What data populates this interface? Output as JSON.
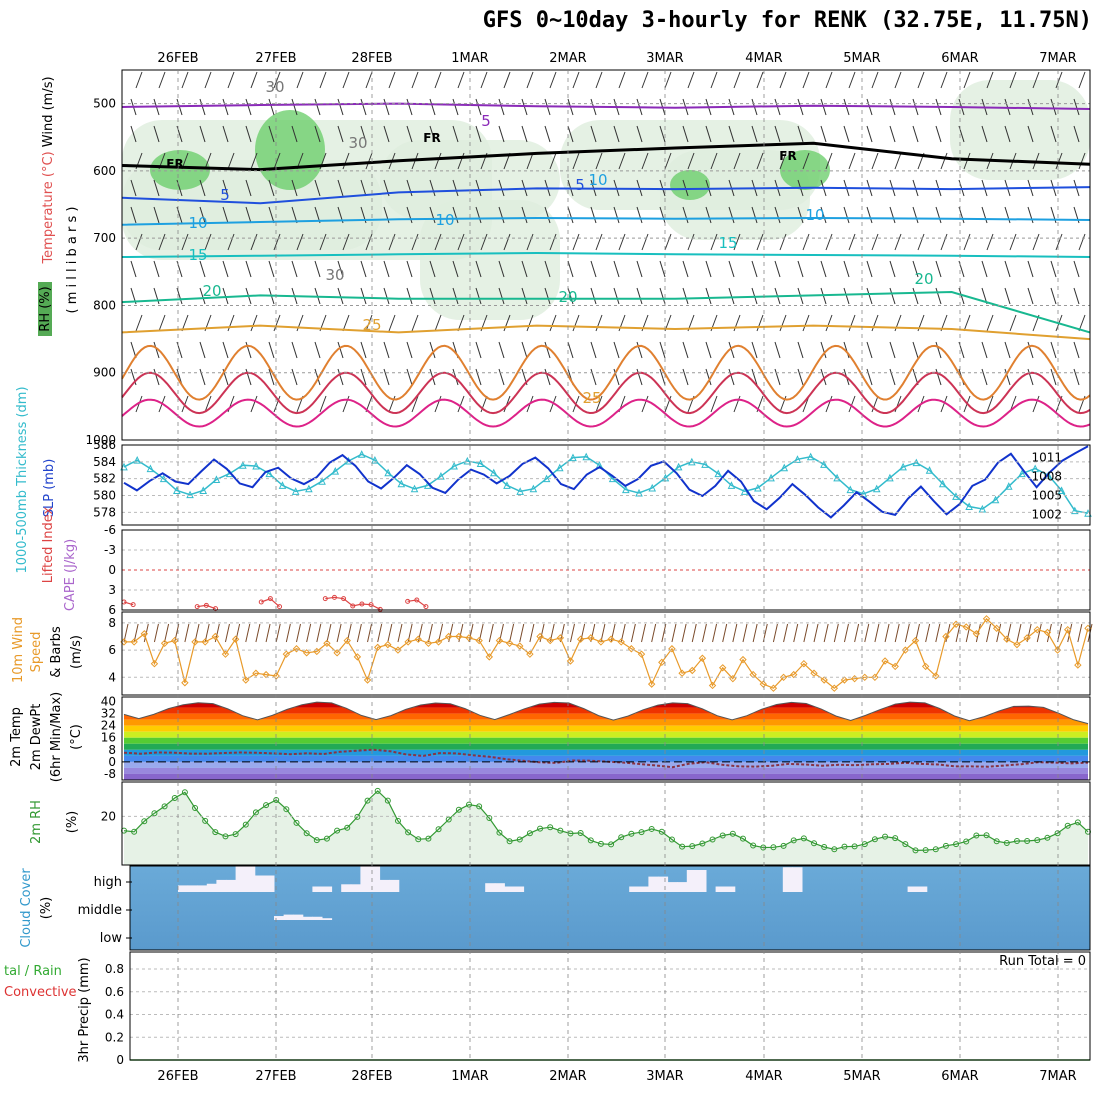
{
  "title": "GFS 0~10day 3-hourly for RENK (32.75E, 11.75N)",
  "dates": [
    "26FEB",
    "27FEB",
    "28FEB",
    "1MAR",
    "2MAR",
    "3MAR",
    "4MAR",
    "5MAR",
    "6MAR",
    "7MAR"
  ],
  "panel_labels": {
    "upper_wind": "Wind (m/s)",
    "upper_temp": "Temperature (°C)",
    "upper_rh": "RH (%)",
    "upper_axis": "( m i l l i b a r s )",
    "thick": "1000-500mb Thickness (dm)",
    "slp": "SLP (mb)",
    "li": "Lifted Index",
    "cape": "CAPE (J/kg)",
    "wind10_a": "10m Wind",
    "wind10_b": "Speed",
    "wind10_c": "& Barbs",
    "wind10_unit": "(m/s)",
    "temp_a": "2m Temp",
    "temp_b": "2m DewPt",
    "temp_c": "(6hr Min/Max)",
    "temp_unit": "(°C)",
    "rh2m": "2m RH",
    "rh2m_unit": "(%)",
    "cloud": "Cloud Cover",
    "cloud_unit": "(%)",
    "precip_a": "tal / Rain",
    "precip_b": "Convective",
    "precip_c": "3hr Precip (mm)",
    "run_total": "Run Total = 0"
  },
  "colors": {
    "thickness": "#33bbcc",
    "slp": "#1133cc",
    "li": "#dd4444",
    "wind10": "#e89a2a",
    "rh2m": "#339933",
    "cloud_bg": "#6aaad8"
  },
  "chart_data": [
    {
      "type": "line",
      "panel": "upper-air cross section",
      "ylabel": "( m i l l i b a r s )",
      "ylim": [
        1000,
        450
      ],
      "yticks": [
        "500",
        "600",
        "700",
        "800",
        "900",
        "1000"
      ],
      "contour_labels": [
        "FR",
        "FR",
        "FR",
        "30",
        "30",
        "30",
        "5",
        "5",
        "5",
        "10",
        "10",
        "10",
        "10",
        "15",
        "15",
        "20",
        "20",
        "20",
        "25",
        "25"
      ],
      "series": [
        {
          "name": "-5",
          "pressure": [
            505,
            502,
            500,
            504,
            506,
            503,
            505,
            508
          ]
        },
        {
          "name": "0",
          "pressure": [
            592,
            598,
            585,
            574,
            566,
            559,
            582,
            590
          ]
        },
        {
          "name": "5",
          "pressure": [
            640,
            648,
            632,
            626,
            627,
            625,
            627,
            624
          ]
        },
        {
          "name": "10",
          "pressure": [
            680,
            676,
            672,
            670,
            671,
            670,
            671,
            673
          ]
        },
        {
          "name": "15",
          "pressure": [
            728,
            726,
            724,
            722,
            724,
            725,
            726,
            728
          ]
        },
        {
          "name": "20",
          "pressure": [
            795,
            785,
            790,
            790,
            790,
            785,
            780,
            840
          ]
        },
        {
          "name": "25",
          "pressure": [
            840,
            830,
            840,
            830,
            835,
            830,
            835,
            850
          ]
        }
      ]
    },
    {
      "type": "line",
      "panel": "thickness-slp",
      "y_left": [
        "578",
        "580",
        "582",
        "584",
        "586"
      ],
      "y_right": [
        "1002",
        "1005",
        "1008",
        "1011"
      ],
      "series": [
        {
          "name": "1000-500mb Thickness (dm)",
          "values": [
            583.4,
            584.2,
            583.2,
            582.0,
            580.6,
            580.1,
            580.6,
            581.9,
            582.6,
            583.6,
            583.5,
            582.6,
            581.2,
            580.5,
            580.8,
            581.7,
            582.9,
            584.1,
            584.9,
            584.2,
            582.7,
            581.4,
            580.8,
            581.2,
            582.3,
            583.5,
            584.1,
            583.8,
            582.7,
            581.2,
            580.5,
            580.8,
            582.0,
            583.3,
            584.5,
            584.6,
            583.6,
            582.0,
            580.7,
            580.3,
            580.9,
            582.1,
            583.4,
            584.0,
            583.7,
            582.6,
            581.2,
            580.5,
            580.9,
            582.1,
            583.3,
            584.3,
            584.6,
            583.7,
            582.1,
            580.7,
            580.2,
            580.8,
            582.1,
            583.4,
            583.9,
            583.0,
            581.4,
            579.9,
            578.7,
            578.4,
            579.5,
            581.1,
            582.6,
            583.2,
            582.4,
            580.6,
            578.2,
            577.9
          ]
        },
        {
          "name": "SLP (mb)",
          "values": [
            1007.0,
            1005.8,
            1007.3,
            1008.5,
            1007.2,
            1006.8,
            1008.8,
            1010.7,
            1009.2,
            1006.9,
            1006.3,
            1008.7,
            1009.4,
            1007.7,
            1006.8,
            1007.9,
            1010.2,
            1011.4,
            1009.7,
            1007.2,
            1006.1,
            1007.8,
            1009.8,
            1008.4,
            1006.2,
            1005.4,
            1007.5,
            1009.1,
            1008.3,
            1006.9,
            1008.1,
            1010.0,
            1011.0,
            1009.3,
            1006.8,
            1006.0,
            1008.3,
            1009.5,
            1008.1,
            1006.5,
            1007.6,
            1009.7,
            1010.4,
            1008.5,
            1005.9,
            1004.9,
            1006.5,
            1008.9,
            1007.2,
            1004.1,
            1002.8,
            1004.6,
            1006.8,
            1005.1,
            1003.1,
            1001.5,
            1003.4,
            1005.5,
            1004.0,
            1002.4,
            1001.9,
            1004.5,
            1006.4,
            1004.1,
            1002.0,
            1003.6,
            1006.5,
            1007.5,
            1010.2,
            1011.6,
            1008.9,
            1006.3,
            1008.6,
            1010.5,
            1011.7,
            1012.8
          ]
        }
      ]
    },
    {
      "type": "line",
      "panel": "lifted-index",
      "yticks": [
        "6",
        "3",
        "0",
        "-3",
        "-6"
      ],
      "series": [
        {
          "name": "Lifted Index",
          "values": [
            4.8,
            5.2,
            null,
            null,
            null,
            null,
            null,
            null,
            5.5,
            5.3,
            5.8,
            null,
            null,
            null,
            null,
            4.8,
            4.3,
            5.5,
            null,
            null,
            null,
            null,
            4.3,
            4.1,
            4.3,
            5.4,
            5.1,
            5.2,
            5.9,
            null,
            null,
            4.7,
            4.5,
            5.5
          ]
        }
      ]
    },
    {
      "type": "line",
      "panel": "10m wind",
      "ylabel": "(m/s)",
      "yticks": [
        "4",
        "6",
        "8"
      ],
      "series": [
        {
          "name": "10m Wind Speed",
          "values": [
            6.6,
            6.6,
            7.2,
            5.0,
            6.5,
            6.7,
            3.6,
            6.6,
            6.6,
            7.0,
            5.7,
            6.8,
            3.8,
            4.3,
            4.2,
            4.1,
            5.7,
            6.1,
            5.8,
            5.9,
            6.5,
            5.8,
            6.7,
            5.5,
            3.8,
            6.2,
            6.4,
            6.0,
            6.6,
            6.8,
            6.5,
            6.6,
            7.0,
            7.0,
            6.9,
            6.7,
            5.5,
            6.7,
            6.5,
            6.3,
            5.7,
            7.0,
            6.7,
            6.9,
            5.2,
            6.8,
            6.9,
            6.6,
            6.8,
            6.6,
            6.1,
            5.7,
            3.5,
            5.1,
            6.1,
            4.3,
            4.5,
            5.4,
            3.4,
            4.7,
            3.9,
            5.3,
            4.2,
            3.5,
            3.2,
            4.0,
            4.2,
            5.0,
            4.3,
            3.8,
            3.2,
            3.8,
            3.9,
            4.0,
            4.0,
            5.2,
            4.8,
            6.0,
            6.7,
            4.8,
            4.1,
            7.0,
            7.9,
            7.7,
            7.2,
            8.3,
            7.6,
            6.8,
            6.4,
            6.9,
            7.5,
            7.3,
            6.0,
            7.5,
            4.9,
            7.6
          ]
        }
      ]
    },
    {
      "type": "area",
      "panel": "2m temperature",
      "ylabel": "(°C)",
      "yticks": [
        "40",
        "32",
        "24",
        "16",
        "8",
        "0",
        "-8"
      ],
      "series": [
        {
          "name": "2m Temp",
          "values": [
            31.5,
            28.7,
            31.5,
            35.3,
            37.9,
            39.2,
            38.6,
            35.1,
            30.6,
            27.9,
            30.8,
            34.8,
            37.9,
            39.6,
            39.1,
            35.5,
            30.8,
            28.0,
            30.7,
            34.8,
            37.7,
            39.0,
            38.5,
            35.3,
            30.9,
            28.0,
            31.4,
            35.2,
            38.3,
            39.4,
            39.0,
            35.3,
            30.7,
            27.7,
            30.4,
            34.5,
            37.6,
            39.1,
            38.6,
            35.1,
            30.6,
            27.9,
            30.6,
            34.9,
            38.0,
            39.4,
            38.7,
            35.1,
            30.4,
            27.4,
            30.8,
            34.7,
            38.3,
            39.6,
            39.1,
            35.4,
            30.4,
            27.3,
            30.0,
            33.7,
            36.8,
            37.0,
            36.1,
            32.3,
            28.0,
            25.4
          ]
        },
        {
          "name": "2m DewPt",
          "values": [
            6.1,
            5.4,
            6.2,
            6.1,
            5.5,
            5.4,
            5.9,
            6.2,
            6.0,
            5.6,
            5.1,
            5.7,
            5.2,
            6.7,
            7.4,
            8.1,
            7.1,
            4.9,
            4.0,
            5.8,
            5.6,
            4.4,
            3.4,
            1.8,
            0.7,
            -0.3,
            -0.7,
            0.9,
            0.8,
            0.2,
            -0.4,
            -1.4,
            -2.4,
            -3.5,
            -1.2,
            -0.2,
            -1.9,
            -3.0,
            -3.1,
            -2.5,
            -1.3,
            -1.7,
            -2.5,
            -1.9,
            -2.2,
            -1.6,
            -1.3,
            -0.6,
            -1.3,
            -1.7,
            -3.0,
            -3.0,
            -3.2,
            -2.4,
            -1.5,
            -0.2,
            -0.5,
            -1.0,
            -0.5
          ]
        }
      ]
    },
    {
      "type": "area",
      "panel": "2m relative humidity",
      "ylabel": "(%)",
      "yticks": [
        "20"
      ],
      "series": [
        {
          "name": "2m RH",
          "values": [
            15.0,
            14.6,
            18.3,
            21.1,
            23.5,
            26.4,
            28.4,
            22.9,
            18.4,
            14.5,
            13.0,
            13.8,
            17.1,
            21.4,
            23.9,
            25.7,
            22.5,
            17.7,
            14.1,
            11.7,
            12.2,
            15.0,
            16.0,
            19.8,
            25.5,
            28.9,
            25.5,
            18.4,
            14.4,
            12.0,
            12.2,
            15.5,
            18.9,
            22.3,
            24.1,
            23.5,
            19.4,
            14.3,
            11.3,
            11.9,
            14.1,
            15.7,
            16.2,
            15.0,
            14.0,
            14.2,
            11.6,
            10.4,
            10.2,
            12.7,
            13.9,
            14.5,
            15.6,
            14.6,
            11.9,
            9.4,
            9.6,
            10.5,
            11.9,
            13.3,
            13.9,
            12.2,
            9.8,
            9.1,
            9.2,
            9.7,
            11.6,
            12.3,
            10.6,
            9.3,
            8.5,
            9.4,
            9.5,
            10.3,
            12.0,
            12.9,
            12.4,
            10.3,
            8.1,
            8.2,
            8.5,
            9.7,
            10.3,
            11.2,
            13.3,
            13.4,
            11.3,
            10.7,
            11.4,
            11.4,
            11.7,
            12.5,
            14.1,
            16.7,
            17.9,
            14.6
          ]
        }
      ]
    },
    {
      "type": "bar",
      "panel": "cloud cover",
      "yticks": [
        "high",
        "middle",
        "low"
      ],
      "series": [
        {
          "name": "high",
          "values": [
            0,
            0,
            0,
            0,
            0,
            12,
            12,
            12,
            15,
            22,
            22,
            48,
            48,
            30,
            30,
            0,
            0,
            0,
            0,
            10,
            10,
            0,
            14,
            14,
            48,
            48,
            22,
            22,
            0,
            0,
            0,
            0,
            0,
            0,
            0,
            0,
            0,
            16,
            16,
            10,
            10,
            0,
            0,
            0,
            0,
            0,
            0,
            0,
            0,
            0,
            0,
            0,
            10,
            10,
            28,
            28,
            18,
            18,
            40,
            40,
            0,
            10,
            10,
            0,
            0,
            0,
            0,
            0,
            45,
            45,
            0,
            0,
            0,
            0,
            0,
            0,
            0,
            0,
            0,
            0,
            0,
            10,
            10,
            0,
            0,
            0,
            0,
            0,
            0,
            0,
            0,
            0,
            0,
            0,
            0,
            0,
            0,
            0,
            0,
            0
          ]
        },
        {
          "name": "middle",
          "values": [
            0,
            0,
            0,
            0,
            0,
            0,
            0,
            0,
            0,
            0,
            0,
            0,
            0,
            0,
            0,
            22,
            30,
            30,
            18,
            18,
            10,
            0,
            0,
            0,
            0,
            0,
            0,
            0,
            0,
            0,
            0,
            0,
            0,
            0,
            0,
            0,
            0,
            0,
            0,
            0,
            0,
            0,
            0,
            0,
            0,
            0,
            0,
            0,
            0,
            0,
            0,
            0,
            0,
            0,
            0,
            0,
            0,
            0,
            0,
            0,
            0,
            0,
            0,
            0,
            0,
            0,
            0,
            0,
            0,
            0,
            0,
            0,
            0,
            0,
            0,
            0,
            0,
            0,
            0,
            0,
            0,
            0,
            0,
            0,
            0,
            0,
            0,
            0,
            0,
            0,
            0,
            0,
            0,
            0,
            0,
            0,
            0,
            0,
            0,
            0
          ]
        }
      ]
    },
    {
      "type": "line",
      "panel": "3hr precipitation",
      "ylabel": "3hr Precip (mm)",
      "yticks": [
        "0",
        "0.2",
        "0.4",
        "0.6",
        "0.8"
      ],
      "series": [
        {
          "name": "Total",
          "values": [
            0,
            0,
            0,
            0,
            0,
            0,
            0,
            0,
            0,
            0
          ]
        }
      ]
    }
  ]
}
